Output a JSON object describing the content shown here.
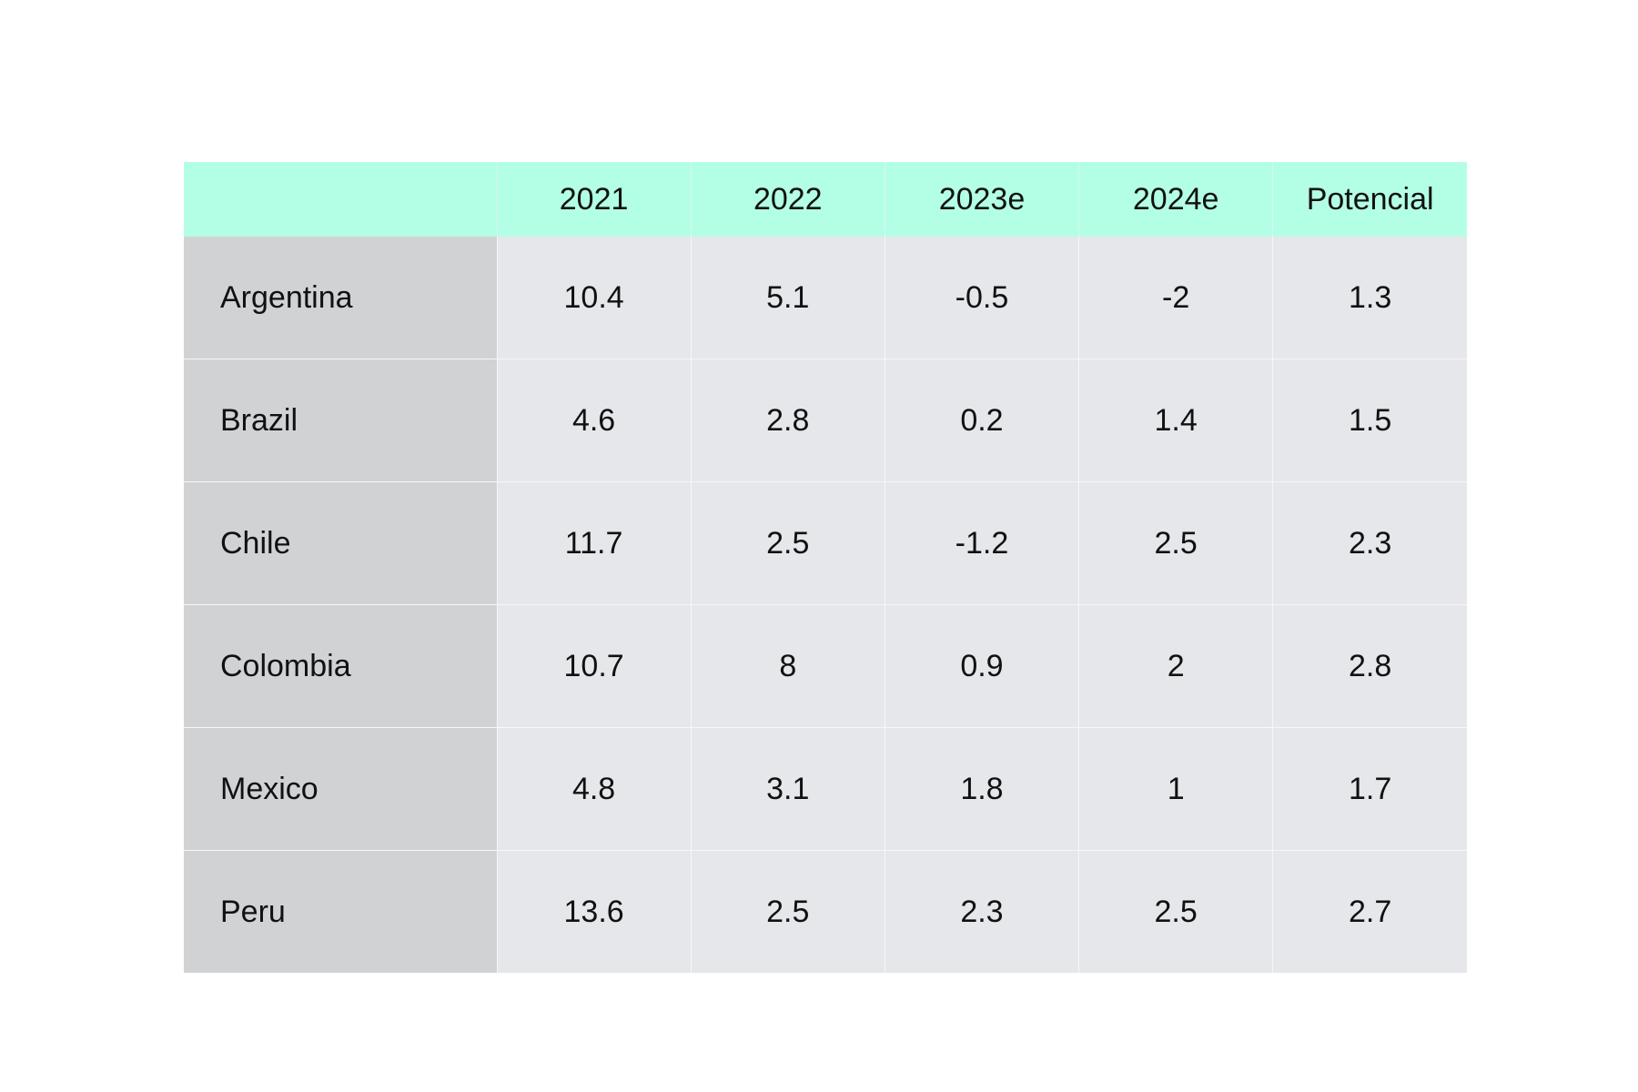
{
  "colors": {
    "header_bg": "#b3ffe6",
    "label_bg": "#d1d2d4",
    "cell_bg": "#e6e7ea"
  },
  "chart_data": {
    "type": "table",
    "columns": [
      "",
      "2021",
      "2022",
      "2023e",
      "2024e",
      "Potencial"
    ],
    "rows": [
      {
        "country": "Argentina",
        "values": [
          "10.4",
          "5.1",
          "-0.5",
          "-2",
          "1.3"
        ]
      },
      {
        "country": "Brazil",
        "values": [
          "4.6",
          "2.8",
          "0.2",
          "1.4",
          "1.5"
        ]
      },
      {
        "country": "Chile",
        "values": [
          "11.7",
          "2.5",
          "-1.2",
          "2.5",
          "2.3"
        ]
      },
      {
        "country": "Colombia",
        "values": [
          "10.7",
          "8",
          "0.9",
          "2",
          "2.8"
        ]
      },
      {
        "country": "Mexico",
        "values": [
          "4.8",
          "3.1",
          "1.8",
          "1",
          "1.7"
        ]
      },
      {
        "country": "Peru",
        "values": [
          "13.6",
          "2.5",
          "2.3",
          "2.5",
          "2.7"
        ]
      }
    ]
  }
}
